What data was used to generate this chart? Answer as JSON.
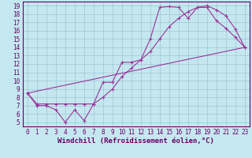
{
  "xlabel": "Windchill (Refroidissement éolien,°C)",
  "xlim": [
    -0.5,
    23.5
  ],
  "ylim": [
    4.5,
    19.5
  ],
  "xticks": [
    0,
    1,
    2,
    3,
    4,
    5,
    6,
    7,
    8,
    9,
    10,
    11,
    12,
    13,
    14,
    15,
    16,
    17,
    18,
    19,
    20,
    21,
    22,
    23
  ],
  "yticks": [
    5,
    6,
    7,
    8,
    9,
    10,
    11,
    12,
    13,
    14,
    15,
    16,
    17,
    18,
    19
  ],
  "background_color": "#c5e8f0",
  "line_color": "#993399",
  "grid_color": "#99bbcc",
  "line1_x": [
    0,
    1,
    2,
    3,
    4,
    5,
    6,
    7,
    8,
    9,
    10,
    11,
    12,
    13,
    14,
    15,
    16,
    17,
    18,
    19,
    20,
    21,
    22,
    23
  ],
  "line1_y": [
    8.5,
    7.0,
    7.0,
    6.5,
    5.0,
    6.5,
    5.2,
    7.2,
    9.8,
    9.8,
    12.2,
    12.2,
    12.5,
    15.0,
    18.8,
    18.9,
    18.8,
    17.5,
    18.8,
    18.8,
    17.2,
    16.3,
    15.2,
    14.0
  ],
  "line2_x": [
    0,
    1,
    2,
    3,
    4,
    5,
    6,
    7,
    8,
    9,
    10,
    11,
    12,
    13,
    14,
    15,
    16,
    17,
    18,
    19,
    20,
    21,
    22,
    23
  ],
  "line2_y": [
    8.5,
    7.2,
    7.2,
    7.2,
    7.2,
    7.2,
    7.2,
    7.2,
    8.0,
    9.0,
    10.5,
    11.5,
    12.5,
    13.5,
    15.0,
    16.5,
    17.5,
    18.3,
    18.8,
    19.0,
    18.5,
    17.8,
    16.2,
    14.0
  ],
  "line3_x": [
    0,
    23
  ],
  "line3_y": [
    8.5,
    14.0
  ],
  "font_family": "monospace",
  "tick_fontsize": 5.5,
  "label_fontsize": 6.5
}
